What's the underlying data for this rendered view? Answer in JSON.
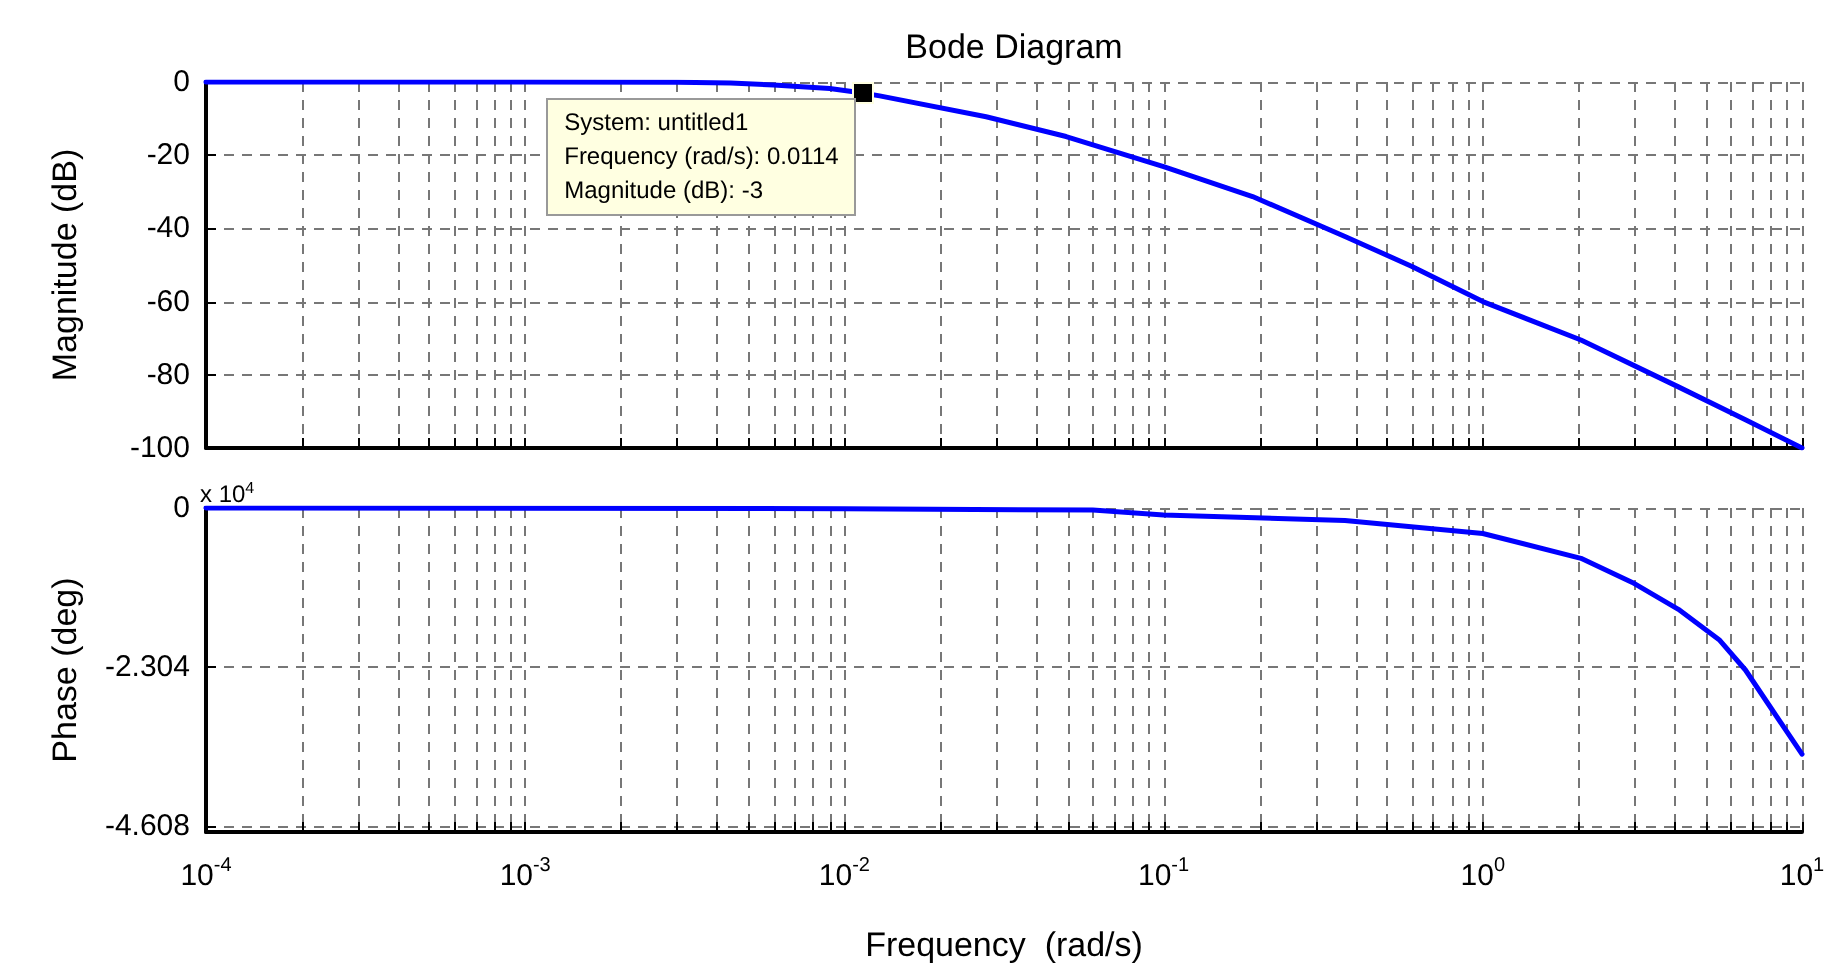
{
  "chart_data": [
    {
      "type": "line",
      "title": "Bode Diagram",
      "ylabel": "Magnitude (dB)",
      "log": "x",
      "grid": true,
      "marker": "none",
      "line_style": "solid",
      "tick_labels": "y",
      "xlim": [
        0.0001,
        10
      ],
      "xticks": [
        {
          "value": 0.0001,
          "label": null
        },
        {
          "value": 0.001,
          "label": null
        },
        {
          "value": 0.01,
          "label": null
        },
        {
          "value": 0.1,
          "label": null
        },
        {
          "value": 1,
          "label": null
        },
        {
          "value": 10,
          "label": null
        }
      ],
      "ylim": [
        -100,
        0
      ],
      "yticks": [
        0,
        -20,
        -40,
        -60,
        -80,
        -100
      ],
      "annotations": [
        {
          "text": "System: untitled1\nFrequency (rad/s): 0.0114\nMagnitude (dB): -3",
          "x": 0.0114,
          "y": -3
        }
      ],
      "series": [
        {
          "color": "#0000ff",
          "x": [
            0.0001,
            0.001,
            0.003,
            0.0044,
            0.006,
            0.009,
            0.0114,
            0.0129,
            0.0278,
            0.0495,
            0.1,
            0.19,
            0.37,
            0.6,
            1,
            2.03,
            4.1,
            6.65,
            10
          ],
          "values": [
            0,
            0,
            -0.1,
            -0.3,
            -0.8,
            -1.8,
            -3,
            -3.8,
            -9.5,
            -14.9,
            -23.1,
            -31.3,
            -42.2,
            -50.4,
            -60,
            -70.5,
            -83.3,
            -92.3,
            -100
          ]
        }
      ]
    },
    {
      "type": "line",
      "xlabel": "Frequency  (rad/s)",
      "ylabel": "Phase (deg)",
      "log": "x",
      "grid": true,
      "marker": "none",
      "line_style": "solid",
      "xlim": [
        0.0001,
        10
      ],
      "xticks": [
        {
          "value": 0.0001,
          "label": "10$^{-4}$"
        },
        {
          "value": 0.001,
          "label": "10$^{-3}$"
        },
        {
          "value": 0.01,
          "label": "10$^{-2}$"
        },
        {
          "value": 0.1,
          "label": "10$^{-1}$"
        },
        {
          "value": 1,
          "label": "10$^{0}$"
        },
        {
          "value": 10,
          "label": "10$^{1}$"
        }
      ],
      "ylim": [
        -4.7,
        0
      ],
      "yticks": [
        0,
        -2.304,
        -4.608
      ],
      "annotations": [
        "x 10$^{4}$"
      ],
      "series": [
        {
          "color": "#0000ff",
          "x": [
            0.0001,
            0.01,
            0.06,
            0.1,
            0.37,
            1,
            2.03,
            2.94,
            4.1,
            5.5,
            6.65,
            8.07,
            10
          ],
          "values": [
            0,
            -0.01,
            -0.03,
            -0.1,
            -0.18,
            -0.37,
            -0.73,
            -1.08,
            -1.47,
            -1.91,
            -2.35,
            -2.93,
            -3.57
          ]
        }
      ]
    }
  ]
}
